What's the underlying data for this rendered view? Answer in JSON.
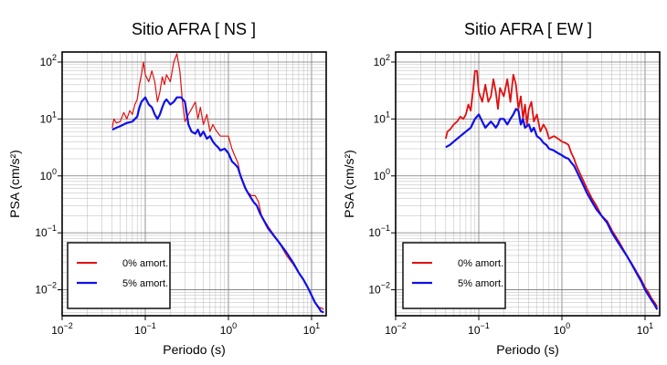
{
  "chart_data": [
    {
      "type": "line",
      "title": "Sitio AFRA [ NS ]",
      "xlabel": "Periodo (s)",
      "ylabel": "PSA (cm/s²)",
      "x_scale": "log",
      "y_scale": "log",
      "xlim": [
        0.01,
        15
      ],
      "ylim": [
        0.0035,
        150
      ],
      "x_ticks": [
        {
          "value": 0.01,
          "base": "10",
          "exp": "−2"
        },
        {
          "value": 0.1,
          "base": "10",
          "exp": "−1"
        },
        {
          "value": 1,
          "base": "10",
          "exp": "0"
        },
        {
          "value": 10,
          "base": "10",
          "exp": "1"
        }
      ],
      "y_ticks": [
        {
          "value": 0.01,
          "base": "10",
          "exp": "−2"
        },
        {
          "value": 0.1,
          "base": "10",
          "exp": "−1"
        },
        {
          "value": 1,
          "base": "10",
          "exp": "0"
        },
        {
          "value": 10,
          "base": "10",
          "exp": "1"
        },
        {
          "value": 100,
          "base": "10",
          "exp": "2"
        }
      ],
      "grid": true,
      "legend_position": "bottom-left",
      "series": [
        {
          "name": "0% amort.",
          "color": "#e01010",
          "width": 1.2,
          "points": [
            [
              0.04,
              7
            ],
            [
              0.042,
              10
            ],
            [
              0.045,
              8.5
            ],
            [
              0.05,
              9
            ],
            [
              0.055,
              13
            ],
            [
              0.06,
              10
            ],
            [
              0.065,
              14
            ],
            [
              0.07,
              12
            ],
            [
              0.075,
              18
            ],
            [
              0.08,
              22
            ],
            [
              0.085,
              40
            ],
            [
              0.09,
              60
            ],
            [
              0.095,
              100
            ],
            [
              0.1,
              60
            ],
            [
              0.11,
              45
            ],
            [
              0.12,
              70
            ],
            [
              0.13,
              45
            ],
            [
              0.14,
              20
            ],
            [
              0.15,
              30
            ],
            [
              0.16,
              55
            ],
            [
              0.17,
              40
            ],
            [
              0.18,
              60
            ],
            [
              0.2,
              45
            ],
            [
              0.22,
              100
            ],
            [
              0.24,
              140
            ],
            [
              0.26,
              70
            ],
            [
              0.28,
              20
            ],
            [
              0.3,
              9
            ],
            [
              0.33,
              12
            ],
            [
              0.36,
              15
            ],
            [
              0.4,
              20
            ],
            [
              0.43,
              10
            ],
            [
              0.46,
              16
            ],
            [
              0.5,
              8
            ],
            [
              0.55,
              12
            ],
            [
              0.6,
              6
            ],
            [
              0.65,
              8
            ],
            [
              0.7,
              6.5
            ],
            [
              0.8,
              5
            ],
            [
              0.9,
              5
            ],
            [
              1.0,
              5
            ],
            [
              1.1,
              3
            ],
            [
              1.2,
              2.2
            ],
            [
              1.3,
              1.7
            ],
            [
              1.4,
              1.0
            ],
            [
              1.5,
              0.8
            ],
            [
              1.7,
              0.52
            ],
            [
              1.9,
              0.45
            ],
            [
              2.1,
              0.45
            ],
            [
              2.3,
              0.35
            ],
            [
              2.5,
              0.2
            ],
            [
              3.0,
              0.13
            ],
            [
              4.0,
              0.07
            ],
            [
              5.0,
              0.04
            ],
            [
              6.0,
              0.028
            ],
            [
              7.0,
              0.02
            ],
            [
              8.0,
              0.015
            ],
            [
              9.0,
              0.011
            ],
            [
              10.0,
              0.008
            ],
            [
              11.0,
              0.006
            ],
            [
              12.0,
              0.005
            ],
            [
              13.0,
              0.0048
            ],
            [
              14.0,
              0.0045
            ]
          ]
        },
        {
          "name": "5% amort.",
          "color": "#1010e8",
          "width": 2.2,
          "points": [
            [
              0.04,
              6.5
            ],
            [
              0.045,
              7
            ],
            [
              0.05,
              7.5
            ],
            [
              0.06,
              8.5
            ],
            [
              0.07,
              9
            ],
            [
              0.08,
              11
            ],
            [
              0.085,
              16
            ],
            [
              0.09,
              20
            ],
            [
              0.1,
              24
            ],
            [
              0.11,
              18
            ],
            [
              0.12,
              16
            ],
            [
              0.13,
              12
            ],
            [
              0.14,
              10
            ],
            [
              0.15,
              12
            ],
            [
              0.16,
              16
            ],
            [
              0.17,
              20
            ],
            [
              0.18,
              22
            ],
            [
              0.2,
              18
            ],
            [
              0.22,
              20
            ],
            [
              0.24,
              24
            ],
            [
              0.27,
              24
            ],
            [
              0.3,
              20
            ],
            [
              0.33,
              8
            ],
            [
              0.36,
              6
            ],
            [
              0.4,
              5.5
            ],
            [
              0.43,
              6.5
            ],
            [
              0.46,
              5
            ],
            [
              0.5,
              6
            ],
            [
              0.55,
              4.5
            ],
            [
              0.6,
              5
            ],
            [
              0.65,
              4
            ],
            [
              0.7,
              3.5
            ],
            [
              0.75,
              3.2
            ],
            [
              0.8,
              2.8
            ],
            [
              0.9,
              3.0
            ],
            [
              1.0,
              2.5
            ],
            [
              1.1,
              1.8
            ],
            [
              1.2,
              1.6
            ],
            [
              1.3,
              1.4
            ],
            [
              1.4,
              1.0
            ],
            [
              1.6,
              0.6
            ],
            [
              1.8,
              0.45
            ],
            [
              2.0,
              0.35
            ],
            [
              2.2,
              0.3
            ],
            [
              2.4,
              0.22
            ],
            [
              2.7,
              0.16
            ],
            [
              3.0,
              0.12
            ],
            [
              4.0,
              0.07
            ],
            [
              5.0,
              0.045
            ],
            [
              6.0,
              0.03
            ],
            [
              7.0,
              0.02
            ],
            [
              8.0,
              0.015
            ],
            [
              9.0,
              0.011
            ],
            [
              10.0,
              0.008
            ],
            [
              11.0,
              0.006
            ],
            [
              12.0,
              0.005
            ],
            [
              13.0,
              0.0042
            ],
            [
              14.0,
              0.004
            ]
          ]
        }
      ]
    },
    {
      "type": "line",
      "title": "Sitio AFRA [ EW ]",
      "xlabel": "Periodo (s)",
      "ylabel": "PSA (cm/s²)",
      "x_scale": "log",
      "y_scale": "log",
      "xlim": [
        0.01,
        15
      ],
      "ylim": [
        0.0035,
        150
      ],
      "x_ticks": [
        {
          "value": 0.01,
          "base": "10",
          "exp": "−2"
        },
        {
          "value": 0.1,
          "base": "10",
          "exp": "−1"
        },
        {
          "value": 1,
          "base": "10",
          "exp": "0"
        },
        {
          "value": 10,
          "base": "10",
          "exp": "1"
        }
      ],
      "y_ticks": [
        {
          "value": 0.01,
          "base": "10",
          "exp": "−2"
        },
        {
          "value": 0.1,
          "base": "10",
          "exp": "−1"
        },
        {
          "value": 1,
          "base": "10",
          "exp": "0"
        },
        {
          "value": 10,
          "base": "10",
          "exp": "1"
        },
        {
          "value": 100,
          "base": "10",
          "exp": "2"
        }
      ],
      "grid": true,
      "legend_position": "bottom-left",
      "series": [
        {
          "name": "0% amort.",
          "color": "#e01010",
          "width": 1.8,
          "points": [
            [
              0.04,
              4.5
            ],
            [
              0.042,
              6
            ],
            [
              0.045,
              6.5
            ],
            [
              0.05,
              8
            ],
            [
              0.055,
              9
            ],
            [
              0.06,
              11
            ],
            [
              0.065,
              10
            ],
            [
              0.07,
              12
            ],
            [
              0.075,
              18
            ],
            [
              0.08,
              14
            ],
            [
              0.085,
              30
            ],
            [
              0.09,
              70
            ],
            [
              0.095,
              70
            ],
            [
              0.1,
              30
            ],
            [
              0.11,
              20
            ],
            [
              0.12,
              40
            ],
            [
              0.13,
              20
            ],
            [
              0.14,
              25
            ],
            [
              0.15,
              50
            ],
            [
              0.16,
              30
            ],
            [
              0.17,
              15
            ],
            [
              0.18,
              35
            ],
            [
              0.2,
              25
            ],
            [
              0.22,
              50
            ],
            [
              0.24,
              20
            ],
            [
              0.26,
              60
            ],
            [
              0.28,
              40
            ],
            [
              0.3,
              15
            ],
            [
              0.32,
              25
            ],
            [
              0.34,
              10
            ],
            [
              0.36,
              18
            ],
            [
              0.38,
              8
            ],
            [
              0.4,
              15
            ],
            [
              0.43,
              20
            ],
            [
              0.46,
              9
            ],
            [
              0.5,
              12
            ],
            [
              0.55,
              6
            ],
            [
              0.6,
              8
            ],
            [
              0.65,
              6.5
            ],
            [
              0.7,
              4.5
            ],
            [
              0.8,
              5
            ],
            [
              0.9,
              4.5
            ],
            [
              1.0,
              4.0
            ],
            [
              1.1,
              3.8
            ],
            [
              1.2,
              3.5
            ],
            [
              1.3,
              2.5
            ],
            [
              1.4,
              2.0
            ],
            [
              1.5,
              1.5
            ],
            [
              1.7,
              1.0
            ],
            [
              2.0,
              0.6
            ],
            [
              2.3,
              0.4
            ],
            [
              2.6,
              0.3
            ],
            [
              3.0,
              0.2
            ],
            [
              3.5,
              0.16
            ],
            [
              4.0,
              0.11
            ],
            [
              5.0,
              0.065
            ],
            [
              6.0,
              0.04
            ],
            [
              7.0,
              0.028
            ],
            [
              8.0,
              0.02
            ],
            [
              9.0,
              0.015
            ],
            [
              10.0,
              0.011
            ],
            [
              11.0,
              0.009
            ],
            [
              12.0,
              0.007
            ],
            [
              13.0,
              0.006
            ],
            [
              14.0,
              0.005
            ]
          ]
        },
        {
          "name": "5% amort.",
          "color": "#1010e8",
          "width": 2.2,
          "points": [
            [
              0.04,
              3.2
            ],
            [
              0.045,
              3.5
            ],
            [
              0.05,
              4
            ],
            [
              0.06,
              5
            ],
            [
              0.07,
              6
            ],
            [
              0.08,
              7
            ],
            [
              0.09,
              10
            ],
            [
              0.1,
              12
            ],
            [
              0.11,
              9
            ],
            [
              0.12,
              7
            ],
            [
              0.13,
              8
            ],
            [
              0.14,
              9
            ],
            [
              0.15,
              8
            ],
            [
              0.16,
              7
            ],
            [
              0.17,
              8
            ],
            [
              0.18,
              10
            ],
            [
              0.2,
              10
            ],
            [
              0.22,
              8
            ],
            [
              0.24,
              10
            ],
            [
              0.26,
              12
            ],
            [
              0.28,
              15
            ],
            [
              0.3,
              14
            ],
            [
              0.32,
              8
            ],
            [
              0.34,
              10
            ],
            [
              0.36,
              7
            ],
            [
              0.4,
              8
            ],
            [
              0.43,
              6
            ],
            [
              0.46,
              7
            ],
            [
              0.5,
              5
            ],
            [
              0.55,
              4.5
            ],
            [
              0.6,
              3.8
            ],
            [
              0.65,
              3.5
            ],
            [
              0.7,
              3
            ],
            [
              0.8,
              2.8
            ],
            [
              0.9,
              2.5
            ],
            [
              1.0,
              2.3
            ],
            [
              1.1,
              2.1
            ],
            [
              1.2,
              2.0
            ],
            [
              1.3,
              1.7
            ],
            [
              1.4,
              1.5
            ],
            [
              1.6,
              1.0
            ],
            [
              1.8,
              0.7
            ],
            [
              2.0,
              0.5
            ],
            [
              2.3,
              0.35
            ],
            [
              2.6,
              0.26
            ],
            [
              3.0,
              0.2
            ],
            [
              3.5,
              0.15
            ],
            [
              4.0,
              0.1
            ],
            [
              5.0,
              0.06
            ],
            [
              6.0,
              0.04
            ],
            [
              7.0,
              0.027
            ],
            [
              8.0,
              0.019
            ],
            [
              9.0,
              0.014
            ],
            [
              10.0,
              0.01
            ],
            [
              11.0,
              0.008
            ],
            [
              12.0,
              0.0065
            ],
            [
              13.0,
              0.0055
            ],
            [
              14.0,
              0.0045
            ]
          ]
        }
      ]
    }
  ]
}
